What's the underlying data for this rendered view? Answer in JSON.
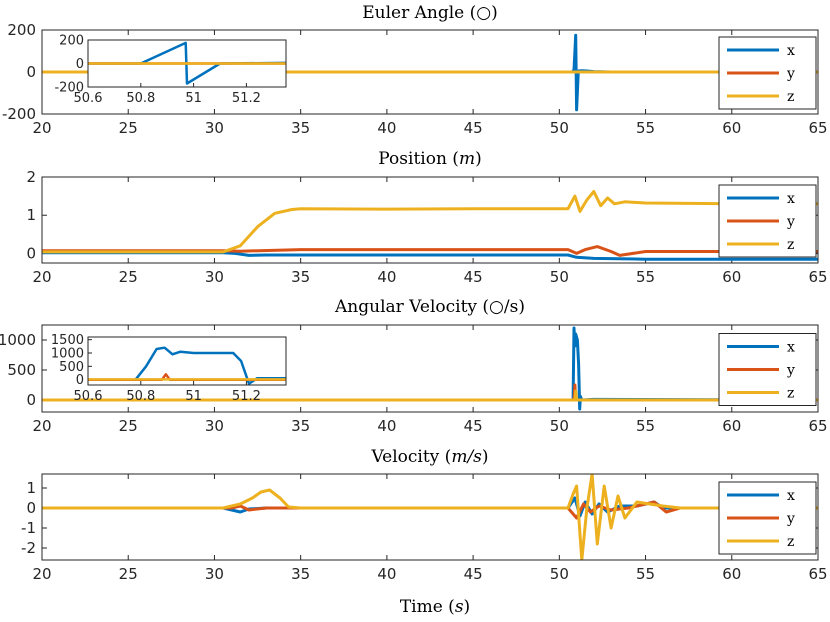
{
  "colors": {
    "x": "#0072BD",
    "y": "#D95319",
    "z": "#EDB120",
    "axis": "#262626"
  },
  "xlabel_prefix": "Time (",
  "xlabel_unit": "s",
  "xlabel_suffix": ")",
  "chart_data": [
    {
      "type": "line",
      "title": "Euler Angle (○)",
      "title_prefix": "Euler Angle (○)",
      "title_unit": "",
      "title_suffix": "",
      "xlim": [
        20,
        65
      ],
      "ylim": [
        -200,
        200
      ],
      "xticks": [
        20,
        25,
        30,
        35,
        40,
        45,
        50,
        55,
        60,
        65
      ],
      "yticks": [
        -200,
        0,
        200
      ],
      "legend": [
        "x",
        "y",
        "z"
      ],
      "legend_position": "right",
      "series": [
        {
          "name": "x",
          "x": [
            20,
            50.75,
            50.85,
            50.95,
            51.0,
            51.1,
            51.3,
            51.6,
            52.0,
            53.0,
            65
          ],
          "y": [
            0,
            0,
            10,
            175,
            -180,
            5,
            6,
            5,
            2,
            0,
            0
          ]
        },
        {
          "name": "y",
          "x": [
            20,
            65
          ],
          "y": [
            0,
            0
          ]
        },
        {
          "name": "z",
          "x": [
            20,
            65
          ],
          "y": [
            0,
            0
          ]
        }
      ],
      "inset": {
        "xlim": [
          50.6,
          51.35
        ],
        "ylim": [
          -200,
          200
        ],
        "xticks": [
          50.6,
          50.8,
          51,
          51.2
        ],
        "yticks": [
          -200,
          0,
          200
        ],
        "series": [
          {
            "name": "x",
            "x": [
              50.6,
              50.8,
              50.97,
              50.975,
              51.1,
              51.35
            ],
            "y": [
              0,
              0,
              175,
              -170,
              0,
              5
            ]
          },
          {
            "name": "y",
            "x": [
              50.6,
              51.35
            ],
            "y": [
              0,
              0
            ]
          },
          {
            "name": "z",
            "x": [
              50.6,
              51.35
            ],
            "y": [
              0,
              0
            ]
          }
        ]
      }
    },
    {
      "type": "line",
      "title": "Position (m)",
      "title_prefix": "Position (",
      "title_unit": "m",
      "title_suffix": ")",
      "xlim": [
        20,
        65
      ],
      "ylim": [
        -0.25,
        2
      ],
      "xticks": [
        20,
        25,
        30,
        35,
        40,
        45,
        50,
        55,
        60,
        65
      ],
      "yticks": [
        0,
        1,
        2
      ],
      "legend": [
        "x",
        "y",
        "z"
      ],
      "legend_position": "right",
      "series": [
        {
          "name": "x",
          "x": [
            20,
            30.5,
            31.2,
            32.0,
            33,
            40,
            45,
            50.5,
            51,
            52,
            55,
            65
          ],
          "y": [
            0.02,
            0.02,
            0,
            -0.05,
            -0.04,
            -0.04,
            -0.04,
            -0.04,
            -0.1,
            -0.13,
            -0.15,
            -0.15
          ]
        },
        {
          "name": "y",
          "x": [
            20,
            30.5,
            31.5,
            35,
            40,
            45,
            50.5,
            51.0,
            51.5,
            52.2,
            53.0,
            53.5,
            55,
            65
          ],
          "y": [
            0.07,
            0.07,
            0.06,
            0.1,
            0.1,
            0.1,
            0.1,
            0.0,
            0.1,
            0.18,
            0.05,
            -0.05,
            0.05,
            0.05
          ]
        },
        {
          "name": "z",
          "x": [
            20,
            30.5,
            31.5,
            32.5,
            33.5,
            34.5,
            35,
            40,
            45,
            50.5,
            50.9,
            51.2,
            51.6,
            52.0,
            52.4,
            52.8,
            53.2,
            53.8,
            55,
            60,
            65
          ],
          "y": [
            0.04,
            0.04,
            0.2,
            0.7,
            1.05,
            1.15,
            1.17,
            1.16,
            1.17,
            1.17,
            1.5,
            1.1,
            1.4,
            1.62,
            1.25,
            1.45,
            1.3,
            1.35,
            1.32,
            1.3,
            1.3
          ]
        }
      ]
    },
    {
      "type": "line",
      "title": "Angular Velocity (○/s)",
      "title_prefix": "Angular Velocity (○/s)",
      "title_unit": "",
      "title_suffix": "",
      "xlim": [
        20,
        65
      ],
      "ylim": [
        -200,
        1250
      ],
      "xticks": [
        20,
        25,
        30,
        35,
        40,
        45,
        50,
        55,
        60,
        65
      ],
      "yticks": [
        0,
        500,
        1000
      ],
      "legend": [
        "x",
        "y",
        "z"
      ],
      "legend_position": "right",
      "series": [
        {
          "name": "x",
          "x": [
            20,
            50.8,
            50.85,
            50.9,
            50.95,
            51.05,
            51.12,
            51.18,
            51.22,
            51.3,
            52,
            65
          ],
          "y": [
            0,
            0,
            1200,
            900,
            1100,
            1000,
            600,
            -150,
            60,
            0,
            10,
            0
          ]
        },
        {
          "name": "y",
          "x": [
            20,
            50.85,
            50.9,
            50.95,
            51.0,
            65
          ],
          "y": [
            0,
            0,
            250,
            0,
            0,
            0
          ]
        },
        {
          "name": "z",
          "x": [
            20,
            50.9,
            50.95,
            51.0,
            65
          ],
          "y": [
            0,
            0,
            150,
            0,
            0
          ]
        }
      ],
      "inset": {
        "xlim": [
          50.6,
          51.35
        ],
        "ylim": [
          -200,
          1600
        ],
        "xticks": [
          50.6,
          50.8,
          51,
          51.2
        ],
        "yticks": [
          0,
          500,
          1000,
          1500
        ],
        "series": [
          {
            "name": "x",
            "x": [
              50.6,
              50.78,
              50.82,
              50.86,
              50.89,
              50.92,
              50.95,
              51.0,
              51.15,
              51.18,
              51.21,
              51.24,
              51.35
            ],
            "y": [
              0,
              0,
              500,
              1150,
              1200,
              950,
              1050,
              1000,
              1000,
              700,
              -150,
              50,
              50
            ]
          },
          {
            "name": "y",
            "x": [
              50.6,
              50.88,
              50.895,
              50.91,
              51.35
            ],
            "y": [
              0,
              0,
              200,
              0,
              0
            ]
          },
          {
            "name": "z",
            "x": [
              50.6,
              51.35
            ],
            "y": [
              10,
              10
            ]
          }
        ]
      }
    },
    {
      "type": "line",
      "title": "Velocity (m/s)",
      "title_prefix": "Velocity (",
      "title_unit": "m/s",
      "title_suffix": ")",
      "xlim": [
        20,
        65
      ],
      "ylim": [
        -2.6,
        1.7
      ],
      "xticks": [
        20,
        25,
        30,
        35,
        40,
        45,
        50,
        55,
        60,
        65
      ],
      "yticks": [
        -2,
        -1,
        0,
        1
      ],
      "legend": [
        "x",
        "y",
        "z"
      ],
      "legend_position": "right",
      "series": [
        {
          "name": "x",
          "x": [
            20,
            30.5,
            31.0,
            31.5,
            32.0,
            33,
            35,
            50.5,
            50.9,
            51.2,
            51.5,
            51.9,
            52.3,
            52.8,
            53.5,
            54.5,
            55.5,
            56,
            65
          ],
          "y": [
            0,
            0,
            -0.1,
            -0.2,
            -0.05,
            0,
            0,
            0,
            0.5,
            -0.4,
            0.3,
            -0.3,
            0.2,
            -0.2,
            0.1,
            0.1,
            0.3,
            0,
            0
          ]
        },
        {
          "name": "y",
          "x": [
            20,
            31,
            31.5,
            32,
            33,
            50.5,
            51.0,
            51.4,
            51.8,
            52.3,
            53,
            54,
            55.5,
            56.2,
            57,
            65
          ],
          "y": [
            0,
            0,
            0.1,
            -0.1,
            0,
            0,
            -0.5,
            0.2,
            -0.2,
            0.1,
            -0.1,
            0,
            0.3,
            -0.2,
            0,
            0
          ]
        },
        {
          "name": "z",
          "x": [
            20,
            30.5,
            31.5,
            32.2,
            32.7,
            33.2,
            33.8,
            34.3,
            35,
            50.5,
            50.8,
            51.0,
            51.3,
            51.6,
            51.9,
            52.2,
            52.6,
            53.0,
            53.4,
            53.8,
            54.5,
            56,
            57,
            65
          ],
          "y": [
            0,
            0,
            0.2,
            0.5,
            0.8,
            0.9,
            0.5,
            0.05,
            0,
            0,
            0.7,
            1.1,
            -2.6,
            0.0,
            1.7,
            -1.8,
            1.1,
            -1.0,
            0.6,
            -0.5,
            0.3,
            0.1,
            0,
            0
          ]
        }
      ]
    }
  ]
}
